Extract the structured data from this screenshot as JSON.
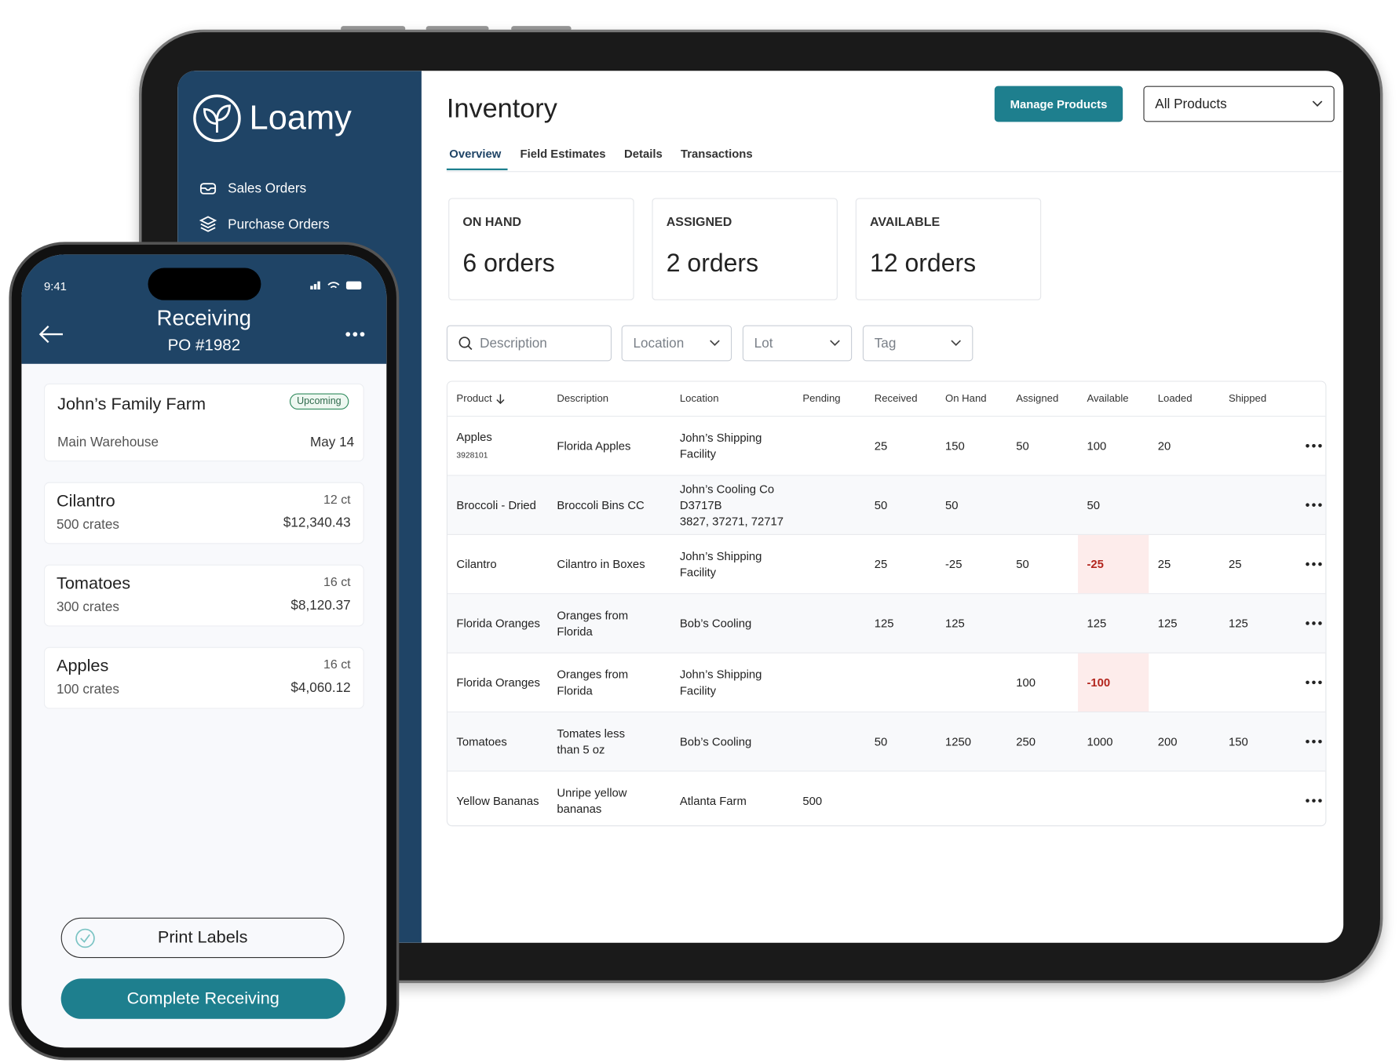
{
  "sidebar": {
    "logo": "Loamy",
    "nav": [
      "Sales Orders",
      "Purchase Orders"
    ]
  },
  "header": {
    "title": "Inventory",
    "button": "Manage Products",
    "dropdown": "All Products"
  },
  "tabs": [
    "Overview",
    "Field Estimates",
    "Details",
    "Transactions"
  ],
  "stats": [
    {
      "label": "ON HAND",
      "value": "6 orders"
    },
    {
      "label": "ASSIGNED",
      "value": "2 orders"
    },
    {
      "label": "AVAILABLE",
      "value": "12 orders"
    }
  ],
  "filters": [
    "Description",
    "Location",
    "Lot",
    "Tag"
  ],
  "table": {
    "columns": [
      "Product",
      "Description",
      "Location",
      "Pending",
      "Received",
      "On Hand",
      "Assigned",
      "Available",
      "Loaded",
      "Shipped"
    ],
    "rows": [
      {
        "product": "Apples",
        "code": "3928101",
        "description": "Florida Apples",
        "location": "John’s Shipping\nFacility",
        "received": 25,
        "on_hand": 150,
        "assigned": 50,
        "available": 100,
        "loaded": 20
      },
      {
        "product": "Broccoli - Dried",
        "description": "Broccoli Bins CC",
        "location": "John’s Cooling Co\nD3717B\n3827, 37271, 72717",
        "received": 50,
        "on_hand": 50,
        "available": 50
      },
      {
        "product": "Cilantro",
        "description": "Cilantro in Boxes",
        "location": "John’s Shipping\nFacility",
        "received": 25,
        "on_hand": -25,
        "assigned": 50,
        "available": -25,
        "loaded": 25,
        "shipped": 25
      },
      {
        "product": "Florida Oranges",
        "description": "Oranges from\nFlorida",
        "location": "Bob’s Cooling",
        "received": 125,
        "on_hand": 125,
        "available": 125,
        "loaded": 125,
        "shipped": 125
      },
      {
        "product": "Florida Oranges",
        "description": "Oranges from\nFlorida",
        "location": "John’s Shipping\nFacility",
        "assigned": 100,
        "available": -100
      },
      {
        "product": "Tomatoes",
        "description": "Tomates less\nthan 5 oz",
        "location": "Bob’s Cooling",
        "received": 50,
        "on_hand": 1250,
        "assigned": 250,
        "available": 1000,
        "loaded": 200,
        "shipped": 150
      },
      {
        "product": "Yellow Bananas",
        "description": "Unripe yellow\nbananas",
        "location": "Atlanta Farm",
        "pending": 500
      }
    ]
  },
  "phone": {
    "time": "9:41",
    "title": "Receiving",
    "subtitle": "PO #1982",
    "order": {
      "farm": "John’s Family Farm",
      "status": "Upcoming",
      "warehouse": "Main Warehouse",
      "date": "May 14"
    },
    "items": [
      {
        "name": "Cilantro",
        "quantity": "500 crates",
        "count": "12 ct",
        "price": "$12,340.43"
      },
      {
        "name": "Tomatoes",
        "quantity": "300 crates",
        "count": "16 ct",
        "price": "$8,120.37"
      },
      {
        "name": "Apples",
        "quantity": "100 crates",
        "count": "16 ct",
        "price": "$4,060.12"
      }
    ],
    "actions": [
      "Print Labels",
      "Complete Receiving"
    ]
  }
}
